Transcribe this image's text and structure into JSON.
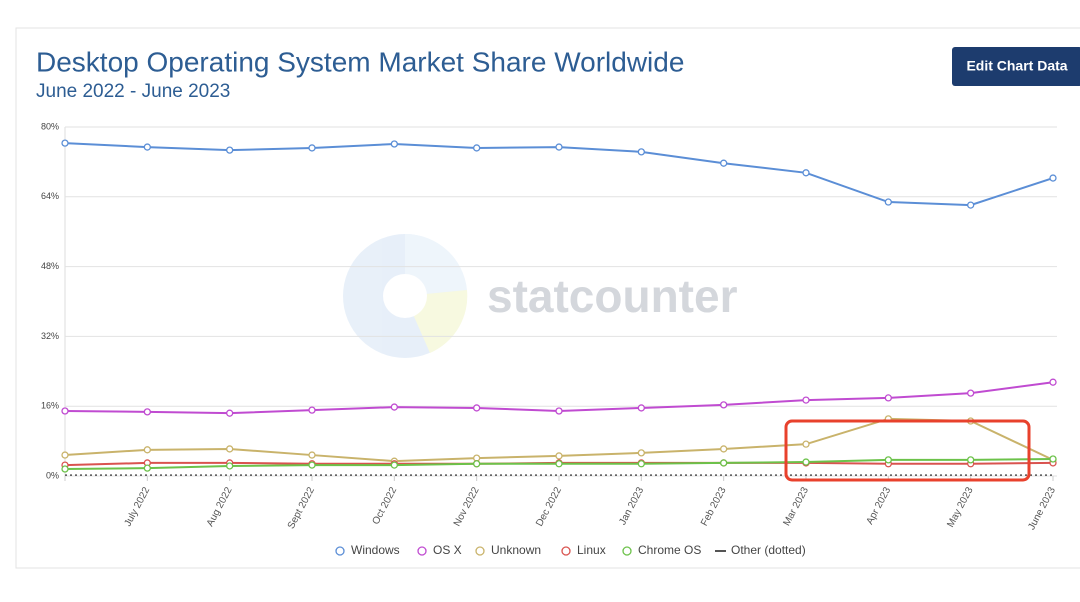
{
  "chart_data": {
    "type": "line",
    "title": "Desktop Operating System Market Share Worldwide",
    "subtitle": "June 2022 - June 2023",
    "button": "Edit Chart Data",
    "watermark": "statcounter",
    "categories": [
      null,
      "July 2022",
      "Aug 2022",
      "Sept 2022",
      "Oct 2022",
      "Nov 2022",
      "Dec 2022",
      "Jan 2023",
      "Feb 2023",
      "Mar 2023",
      "Apr 2023",
      "May 2023",
      "June 2023"
    ],
    "ylim": [
      0,
      80
    ],
    "yticks": [
      {
        "value": 0,
        "label": "0%"
      },
      {
        "value": 16,
        "label": "16%"
      },
      {
        "value": 32,
        "label": "32%"
      },
      {
        "value": 48,
        "label": "48%"
      },
      {
        "value": 64,
        "label": "64%"
      },
      {
        "value": 80,
        "label": "80%"
      }
    ],
    "grid": true,
    "legend": "bottom",
    "series": [
      {
        "name": "Windows",
        "color": "#5b8ed6",
        "values": [
          76.3,
          75.4,
          74.7,
          75.2,
          76.1,
          75.2,
          75.4,
          74.3,
          71.7,
          69.5,
          62.8,
          62.1,
          68.3
        ]
      },
      {
        "name": "OS X",
        "color": "#c04bd1",
        "values": [
          14.9,
          14.7,
          14.4,
          15.1,
          15.8,
          15.6,
          14.9,
          15.6,
          16.3,
          17.4,
          17.9,
          19.0,
          21.5
        ]
      },
      {
        "name": "Unknown",
        "color": "#c9b36b",
        "values": [
          4.8,
          6.0,
          6.2,
          4.8,
          3.4,
          4.1,
          4.6,
          5.3,
          6.2,
          7.3,
          13.1,
          12.6,
          3.7
        ]
      },
      {
        "name": "Linux",
        "color": "#d9534f",
        "values": [
          2.5,
          3.0,
          3.0,
          2.8,
          2.8,
          2.8,
          3.0,
          3.0,
          3.0,
          3.0,
          2.8,
          2.8,
          3.0
        ]
      },
      {
        "name": "Chrome OS",
        "color": "#6cc24a",
        "values": [
          1.6,
          1.8,
          2.3,
          2.5,
          2.5,
          2.8,
          2.8,
          2.8,
          3.0,
          3.2,
          3.7,
          3.7,
          3.9
        ]
      },
      {
        "name": "Other (dotted)",
        "color": "#555555",
        "dotted": true,
        "values": [
          0.2,
          0.2,
          0.2,
          0.2,
          0.2,
          0.2,
          0.2,
          0.2,
          0.2,
          0.2,
          0.2,
          0.2,
          0.2
        ]
      }
    ]
  }
}
